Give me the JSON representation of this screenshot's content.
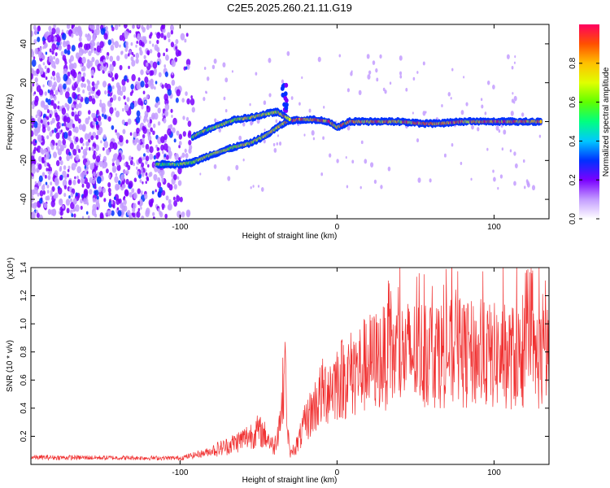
{
  "title": "C2E5.2025.260.21.11.G19",
  "chart_data": [
    {
      "type": "heatmap",
      "name": "spectrogram",
      "xlabel": "Height of straight line (km)",
      "ylabel": "Frequency (Hz)",
      "xlim": [
        -195,
        135
      ],
      "ylim": [
        -50,
        50
      ],
      "xticks": [
        -100,
        0,
        100
      ],
      "yticks": [
        -40,
        -20,
        0,
        20,
        40
      ],
      "colorbar": {
        "label": "Normalized spectral amplitude",
        "range": [
          0,
          1
        ],
        "ticks": [
          "0.0",
          "0.2",
          "0.4",
          "0.6",
          "0.8"
        ]
      },
      "ridge_lower": {
        "x": [
          -115,
          -100,
          -92,
          -80,
          -65,
          -55,
          -45,
          -38,
          -32,
          -25,
          -15,
          -5,
          0,
          8,
          20,
          40,
          55,
          65,
          80,
          100,
          130
        ],
        "y": [
          -22,
          -22,
          -21,
          -17,
          -13,
          -11,
          -7,
          -3,
          0,
          1,
          1,
          0,
          -3,
          0,
          0,
          0,
          -1,
          -1,
          0,
          0,
          0
        ]
      },
      "ridge_upper": {
        "x": [
          -92,
          -85,
          -75,
          -65,
          -55,
          -45,
          -38,
          -34,
          -30
        ],
        "y": [
          -8,
          -5,
          -2,
          1,
          2,
          4,
          5,
          3,
          1
        ]
      }
    },
    {
      "type": "line",
      "name": "snr",
      "xlabel": "Height of straight line (km)",
      "ylabel": "SNR (10 * v/v)",
      "multiplier": "(x10⁴)",
      "xlim": [
        -195,
        135
      ],
      "ylim": [
        0,
        14000
      ],
      "xticks": [
        -100,
        0,
        100
      ],
      "yticks": [
        2000,
        4000,
        6000,
        8000,
        10000,
        12000,
        14000
      ],
      "ytick_labels": [
        "0.2",
        "0.4",
        "0.6",
        "0.8",
        "1.0",
        "1.2",
        "1.4"
      ],
      "color": "#f03030",
      "envelope": {
        "x": [
          -195,
          -100,
          -85,
          -70,
          -60,
          -50,
          -45,
          -40,
          -35,
          -33,
          -32,
          -30,
          -25,
          -20,
          -15,
          -10,
          -5,
          0,
          10,
          20,
          30,
          40,
          60,
          80,
          100,
          120,
          135
        ],
        "y": [
          500,
          450,
          800,
          1300,
          1800,
          2400,
          2000,
          1200,
          4000,
          9200,
          3000,
          700,
          1500,
          3000,
          4000,
          5000,
          5500,
          6000,
          6500,
          7200,
          7600,
          7800,
          8000,
          7800,
          7700,
          7600,
          7500
        ]
      }
    }
  ]
}
